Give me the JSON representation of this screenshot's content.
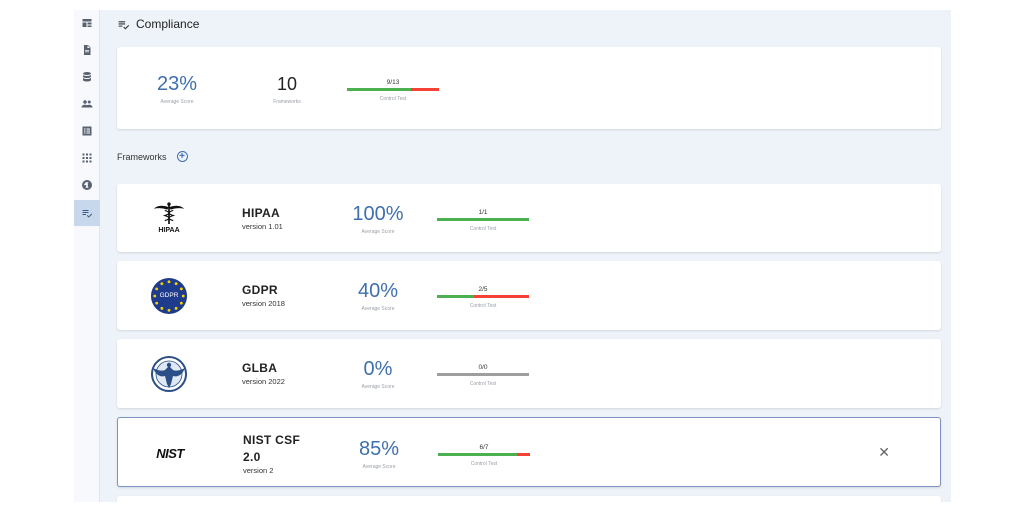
{
  "header": {
    "title": "Compliance",
    "icon": "checklist-icon"
  },
  "sidebar": {
    "items": [
      {
        "name": "dashboard-icon",
        "active": false
      },
      {
        "name": "document-icon",
        "active": false
      },
      {
        "name": "database-icon",
        "active": false
      },
      {
        "name": "people-icon",
        "active": false
      },
      {
        "name": "list-icon",
        "active": false
      },
      {
        "name": "apps-icon",
        "active": false
      },
      {
        "name": "radiation-icon",
        "active": false
      },
      {
        "name": "checklist-icon",
        "active": true
      }
    ]
  },
  "summary": {
    "average_score": "23%",
    "average_score_label": "Average Score",
    "frameworks_count": "10",
    "frameworks_label": "Frameworks",
    "control_count": "9/13",
    "control_label": "Control Test",
    "control_passed": 9,
    "control_total": 13
  },
  "frameworks_section": {
    "title": "Frameworks"
  },
  "frameworks": [
    {
      "logo_text": "HIPAA",
      "name": "HIPAA",
      "version": "version 1.01",
      "score": "100%",
      "score_label": "Average Score",
      "control": "1/1",
      "control_label": "Control Test",
      "passed": 1,
      "total": 1
    },
    {
      "logo_text": "GDPR",
      "name": "GDPR",
      "version": "version 2018",
      "score": "40%",
      "score_label": "Average Score",
      "control": "2/5",
      "control_label": "Control Test",
      "passed": 2,
      "total": 5
    },
    {
      "logo_text": "",
      "name": "GLBA",
      "version": "version 2022",
      "score": "0%",
      "score_label": "Average Score",
      "control": "0/0",
      "control_label": "Control Test",
      "passed": 0,
      "total": 0
    },
    {
      "logo_text": "NIST",
      "name": "NIST CSF 2.0",
      "version": "version 2",
      "score": "85%",
      "score_label": "Average Score",
      "control": "6/7",
      "control_label": "Control Test",
      "passed": 6,
      "total": 7,
      "close_symbol": "✕"
    }
  ],
  "colors": {
    "accent": "#3f6fae",
    "pass": "#4caf50",
    "fail": "#f44336",
    "neutral": "#9e9e9e"
  }
}
